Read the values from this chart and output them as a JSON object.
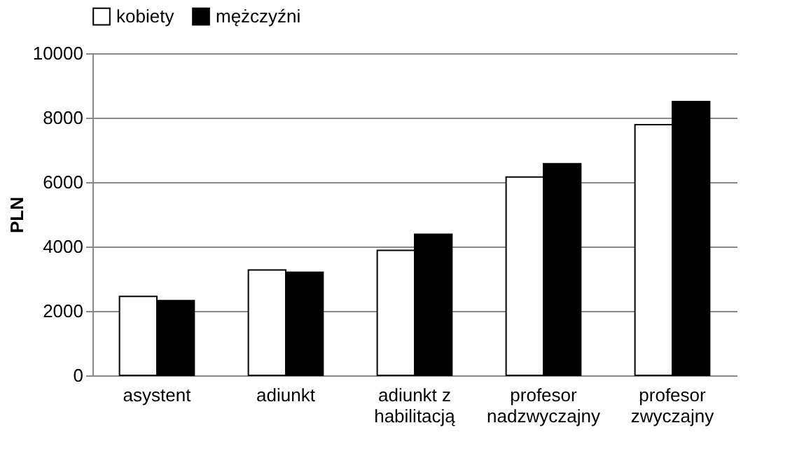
{
  "chart_data": {
    "type": "bar",
    "ylabel": "PLN",
    "categories": [
      "asystent",
      "adiunkt",
      "adiunkt z habilitacją",
      "profesor nadzwyczajny",
      "profesor zwyczajny"
    ],
    "series": [
      {
        "name": "kobiety",
        "color": "#ffffff",
        "values": [
          2450,
          3270,
          3880,
          6160,
          7780
        ]
      },
      {
        "name": "mężczyźni",
        "color": "#000000",
        "values": [
          2320,
          3200,
          4380,
          6570,
          8500
        ]
      }
    ],
    "ylim": [
      0,
      10000
    ],
    "yticks": [
      0,
      2000,
      4000,
      6000,
      8000,
      10000
    ],
    "grid": "y",
    "legend": "top"
  }
}
